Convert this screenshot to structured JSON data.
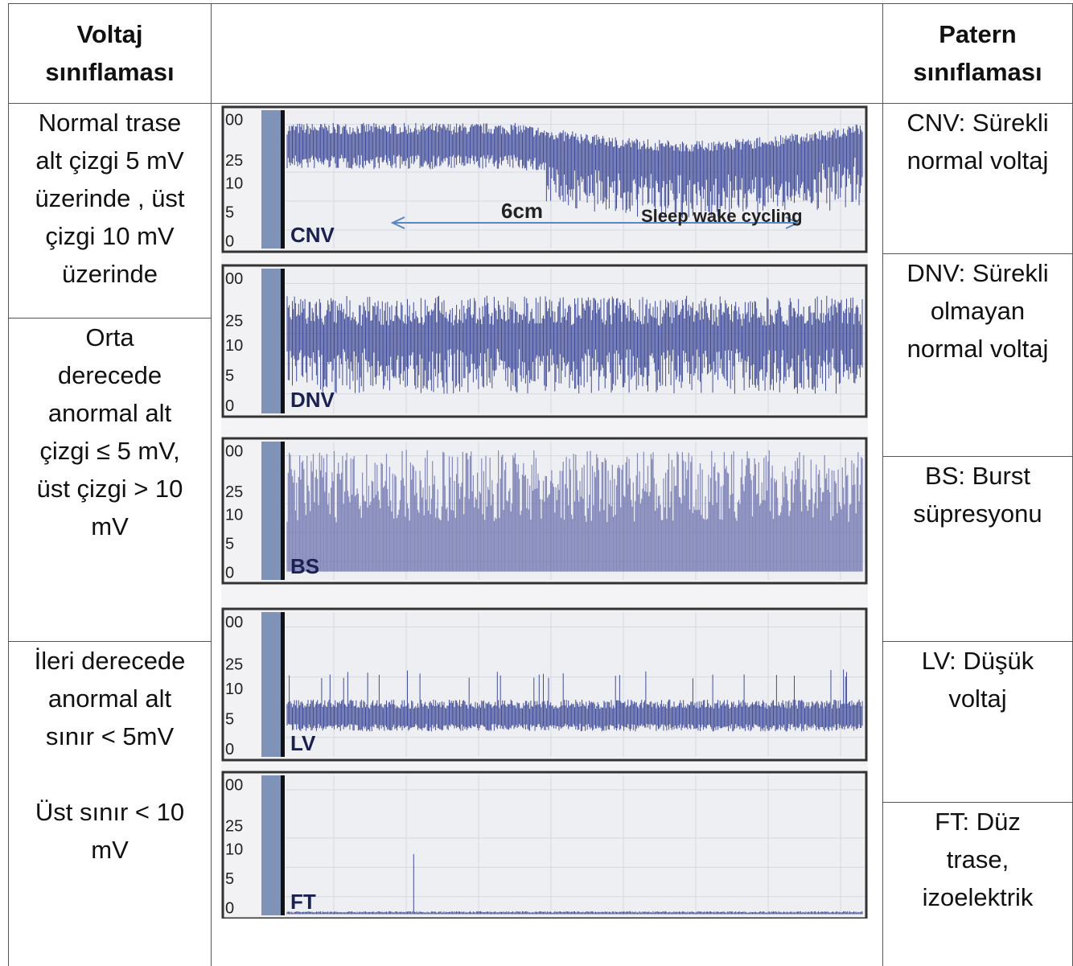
{
  "header": {
    "left": [
      "Voltaj",
      "sınıflaması"
    ],
    "right": [
      "Patern",
      "sınıflaması"
    ]
  },
  "left_cells": [
    [
      "Normal trase",
      "alt çizgi 5 mV",
      "üzerinde , üst",
      "çizgi 10 mV",
      "üzerinde"
    ],
    [
      "Orta",
      "derecede",
      "anormal alt",
      "çizgi ≤ 5 mV,",
      "üst çizgi > 10",
      "mV"
    ],
    [
      "İleri derecede",
      "anormal alt",
      "sınır < 5mV",
      "",
      "Üst sınır < 10",
      "mV"
    ]
  ],
  "right_cells": [
    [
      "CNV: Sürekli",
      "normal voltaj"
    ],
    [
      "DNV: Sürekli",
      "olmayan",
      "normal voltaj"
    ],
    [
      "BS: Burst",
      "süpresyonu"
    ],
    [
      "LV: Düşük",
      "voltaj"
    ],
    [
      "FT: Düz",
      "trase,",
      "izoelektrik"
    ]
  ],
  "panels": [
    {
      "label": "CNV",
      "scale": [
        "00",
        "25",
        "10",
        "5",
        "0"
      ]
    },
    {
      "label": "DNV",
      "scale": [
        "00",
        "25",
        "10",
        "5",
        "0"
      ]
    },
    {
      "label": "BS",
      "scale": [
        "00",
        "25",
        "10",
        "5",
        "0"
      ]
    },
    {
      "label": "LV",
      "scale": [
        "00",
        "25",
        "10",
        "5",
        "0"
      ]
    },
    {
      "label": "FT",
      "scale": [
        "00",
        "25",
        "10",
        "5",
        "0"
      ]
    }
  ],
  "annotation": {
    "distance": "6cm",
    "text": "Sleep wake cycling"
  }
}
